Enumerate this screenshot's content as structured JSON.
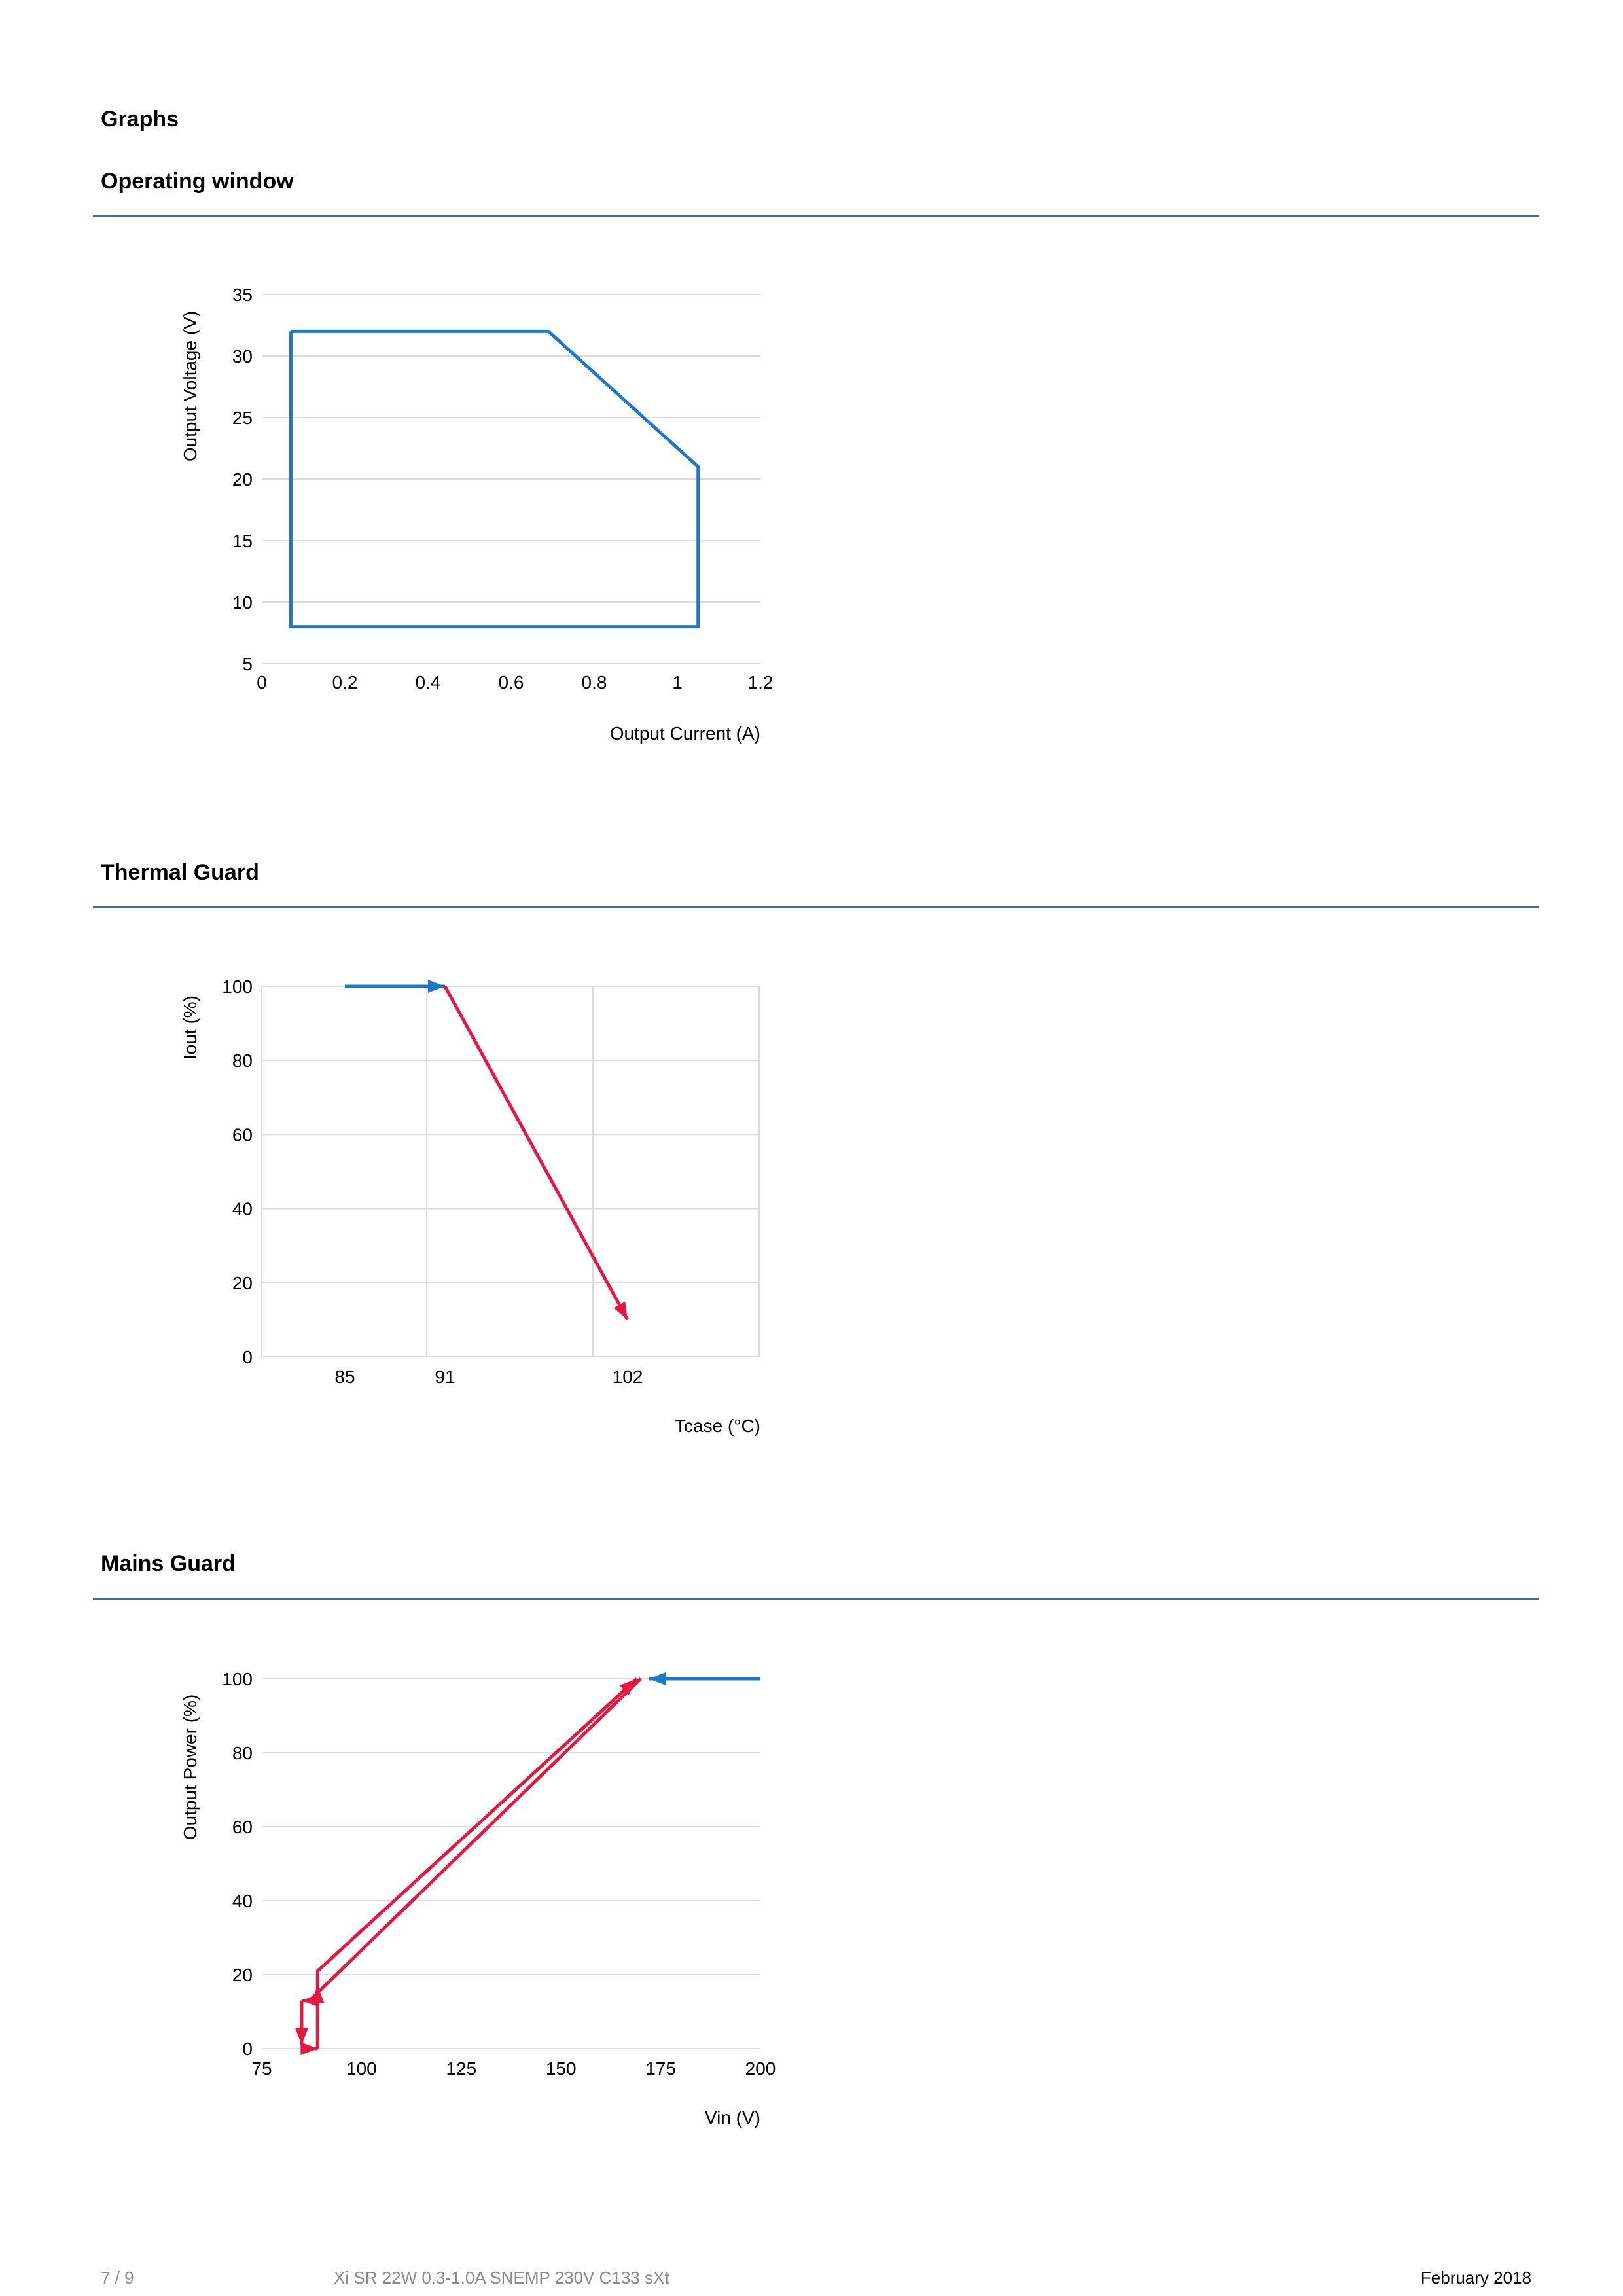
{
  "page": {
    "heading": "Graphs",
    "footer": {
      "page_number": "7 / 9",
      "product": "Xi SR 22W 0.3-1.0A SNEMP 230V C133 sXt",
      "date": "February 2018"
    }
  },
  "sections": [
    {
      "title": "Operating window"
    },
    {
      "title": "Thermal Guard"
    },
    {
      "title": "Mains Guard"
    }
  ],
  "colors": {
    "rule": "#2f6fb3",
    "blue": "#1f77c9",
    "red": "#e8173f",
    "grid": "#dcdcdc"
  },
  "chart_data": [
    {
      "type": "line",
      "title": "Operating window",
      "xlabel": "Output Current (A)",
      "ylabel": "Output Voltage (V)",
      "xlim": [
        0,
        1.2
      ],
      "ylim": [
        5,
        35
      ],
      "xticks": [
        "0",
        "0.2",
        "0.4",
        "0.6",
        "0.8",
        "1",
        "1.2"
      ],
      "yticks": [
        "5",
        "10",
        "15",
        "20",
        "25",
        "30",
        "35"
      ],
      "grid": "horizontal",
      "series": [
        {
          "color": "#1f77c9",
          "x": [
            0.07,
            0.69,
            1.05,
            1.05,
            0.07,
            0.07
          ],
          "y": [
            32,
            32,
            21,
            8,
            8,
            32
          ]
        }
      ]
    },
    {
      "type": "line",
      "title": "Thermal Guard",
      "xlabel": "Tcase (°C)",
      "ylabel": "Iout (%)",
      "ylim": [
        0,
        100
      ],
      "xticks": [
        "85",
        "91",
        "102"
      ],
      "yticks": [
        "0",
        "20",
        "40",
        "60",
        "80",
        "100"
      ],
      "grid": "both",
      "series": [
        {
          "color": "#1f77c9",
          "x": [
            85,
            91
          ],
          "y": [
            100,
            100
          ],
          "arrow": "end"
        },
        {
          "color": "#e8173f",
          "x": [
            91,
            102
          ],
          "y": [
            100,
            10
          ],
          "arrow": "end"
        }
      ]
    },
    {
      "type": "line",
      "title": "Mains Guard",
      "xlabel": "Vin (V)",
      "ylabel": "Output Power (%)",
      "xlim": [
        75,
        200
      ],
      "ylim": [
        0,
        100
      ],
      "xticks": [
        "75",
        "100",
        "125",
        "150",
        "175",
        "200"
      ],
      "yticks": [
        "0",
        "20",
        "40",
        "60",
        "80",
        "100"
      ],
      "grid": "horizontal",
      "series": [
        {
          "color": "#1f77c9",
          "x": [
            200,
            172
          ],
          "y": [
            100,
            100
          ],
          "arrow": "end"
        },
        {
          "color": "#e8173f",
          "x": [
            170,
            87,
            85
          ],
          "y": [
            100,
            13,
            13
          ],
          "arrow": "end"
        },
        {
          "color": "#e8173f",
          "x": [
            85,
            85
          ],
          "y": [
            13,
            1
          ],
          "arrow": "end"
        },
        {
          "color": "#e8173f",
          "x": [
            86,
            89
          ],
          "y": [
            0,
            0
          ],
          "arrow": "end"
        },
        {
          "color": "#e8173f",
          "x": [
            89,
            89
          ],
          "y": [
            0,
            17
          ],
          "arrow": "end"
        },
        {
          "color": "#e8173f",
          "x": [
            89,
            89,
            169
          ],
          "y": [
            17,
            21,
            100
          ],
          "arrow": "end"
        }
      ]
    }
  ]
}
